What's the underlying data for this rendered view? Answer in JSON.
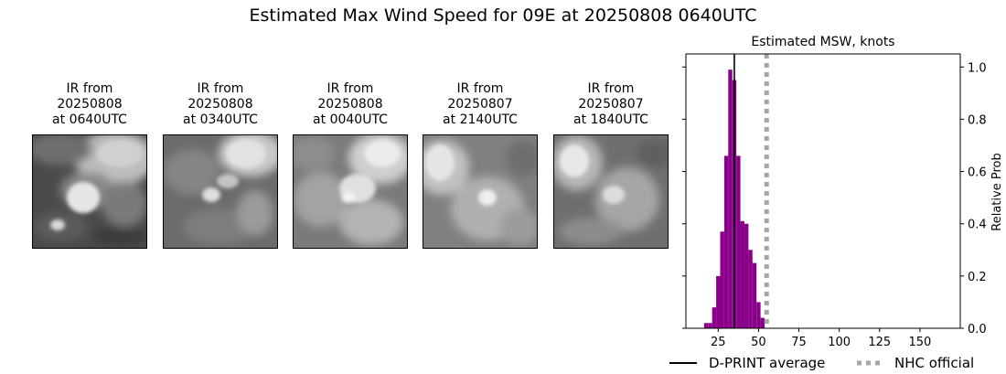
{
  "title": "Estimated Max Wind Speed for 09E at 20250808 0640UTC",
  "panels": [
    {
      "line1": "IR from",
      "line2": "20250808",
      "line3": "at 0640UTC"
    },
    {
      "line1": "IR from",
      "line2": "20250808",
      "line3": "at 0340UTC"
    },
    {
      "line1": "IR from",
      "line2": "20250808",
      "line3": "at 0040UTC"
    },
    {
      "line1": "IR from",
      "line2": "20250807",
      "line3": "at 2140UTC"
    },
    {
      "line1": "IR from",
      "line2": "20250807",
      "line3": "at 1840UTC"
    }
  ],
  "chart_data": {
    "type": "bar",
    "title": "Estimated MSW, knots",
    "ylabel": "Relative Prob",
    "xlim": [
      5,
      175
    ],
    "ylim": [
      0,
      1.05
    ],
    "xticks": [
      25,
      50,
      75,
      100,
      125,
      150
    ],
    "yticks": [
      0.0,
      0.2,
      0.4,
      0.6,
      0.8,
      1.0
    ],
    "bin_width": 2.5,
    "bins": [
      {
        "x": 17.5,
        "y": 0.02
      },
      {
        "x": 20,
        "y": 0.02
      },
      {
        "x": 22.5,
        "y": 0.08
      },
      {
        "x": 25,
        "y": 0.2
      },
      {
        "x": 27.5,
        "y": 0.37
      },
      {
        "x": 30,
        "y": 0.66
      },
      {
        "x": 32.5,
        "y": 0.99
      },
      {
        "x": 35,
        "y": 0.95
      },
      {
        "x": 37.5,
        "y": 0.66
      },
      {
        "x": 40,
        "y": 0.41
      },
      {
        "x": 42.5,
        "y": 0.4
      },
      {
        "x": 45,
        "y": 0.3
      },
      {
        "x": 47.5,
        "y": 0.25
      },
      {
        "x": 50,
        "y": 0.1
      },
      {
        "x": 52.5,
        "y": 0.04
      }
    ],
    "bar_color": "#8b008b",
    "dprint_average": 35,
    "nhc_official": 55,
    "legend": {
      "dprint": "D-PRINT average",
      "nhc": "NHC official"
    },
    "legend_placement": "below"
  }
}
